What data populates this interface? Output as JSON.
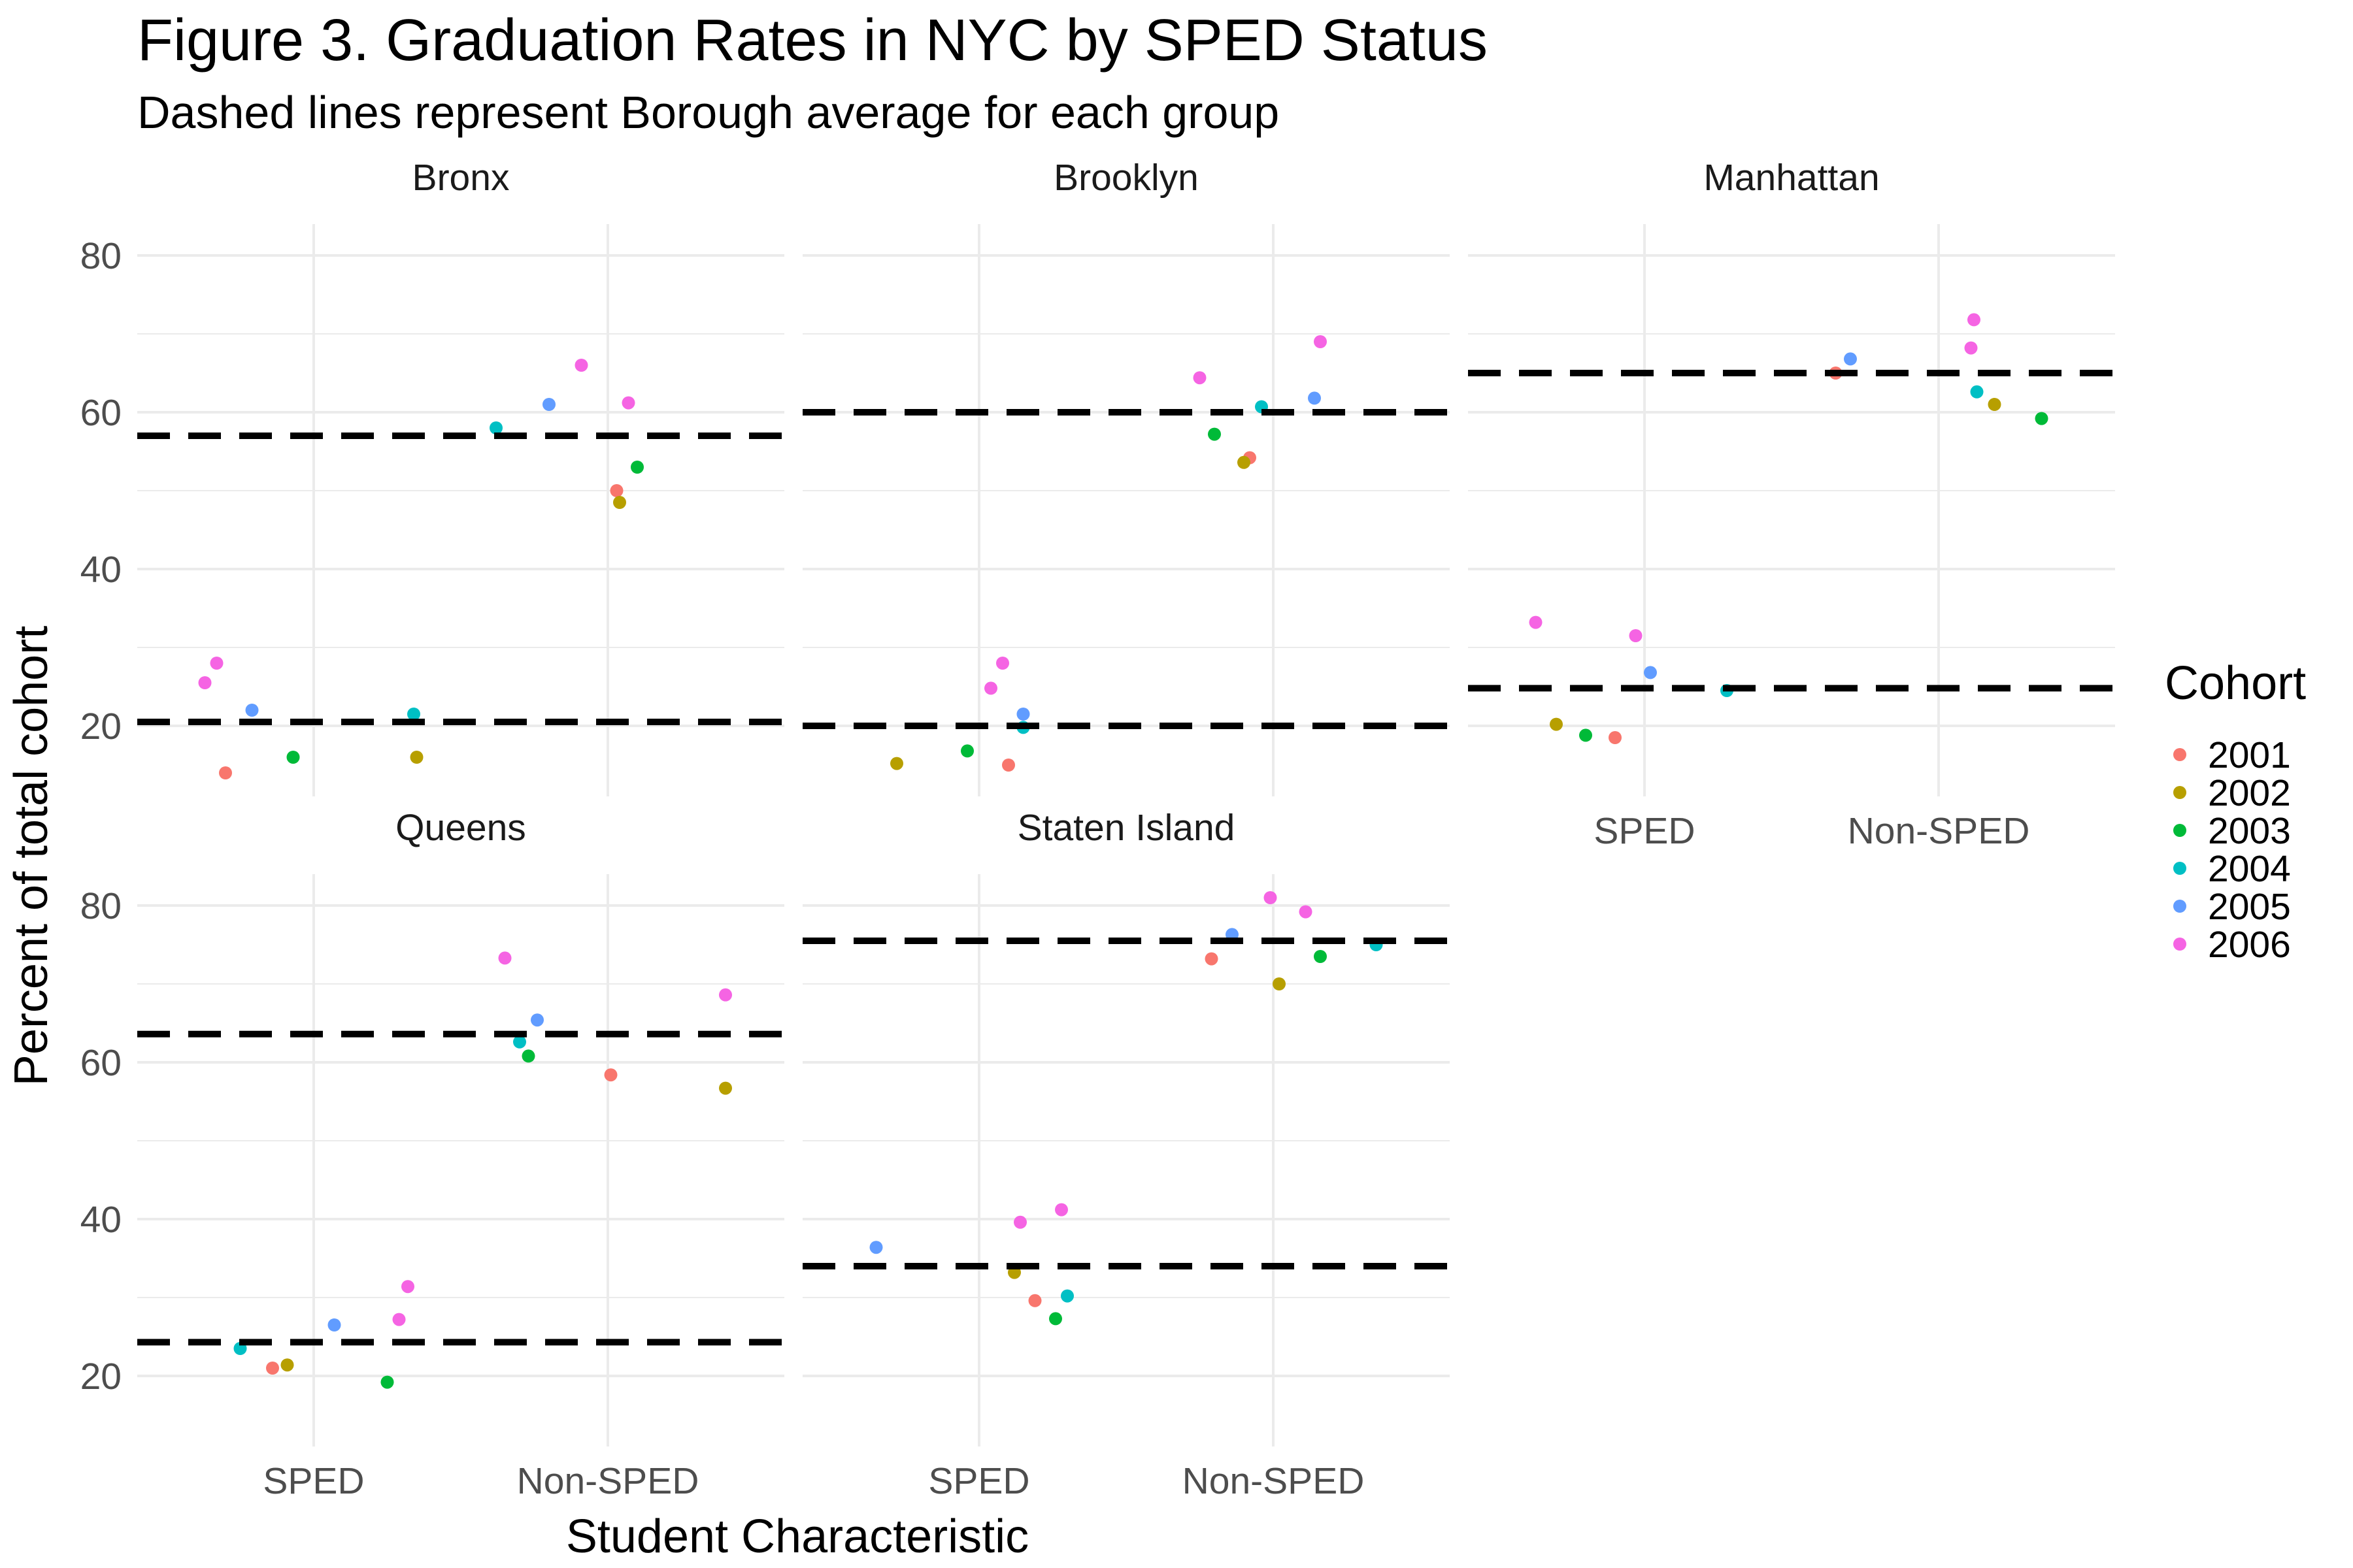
{
  "chart_data": {
    "type": "scatter",
    "title": "Figure 3. Graduation Rates in NYC by SPED Status",
    "subtitle": "Dashed lines represent Borough average for each group",
    "xlabel": "Student Characteristic",
    "ylabel": "Percent of total cohort",
    "categories": [
      "SPED",
      "Non-SPED"
    ],
    "y_ticks": [
      "20",
      "40",
      "60",
      "80"
    ],
    "ylim": [
      11,
      84
    ],
    "grid": true,
    "legend": {
      "title": "Cohort",
      "position": "right",
      "entries": [
        {
          "label": "2001",
          "color": "#F8766D"
        },
        {
          "label": "2002",
          "color": "#B79F00"
        },
        {
          "label": "2003",
          "color": "#00BA38"
        },
        {
          "label": "2004",
          "color": "#00BFC4"
        },
        {
          "label": "2005",
          "color": "#619CFF"
        },
        {
          "label": "2006",
          "color": "#F564E3"
        }
      ]
    },
    "panels": [
      {
        "name": "Bronx",
        "averages": {
          "SPED": 20.5,
          "Non-SPED": 57
        },
        "points": [
          {
            "cohort": "2001",
            "group": "SPED",
            "x": 0.7,
            "y": 14
          },
          {
            "cohort": "2002",
            "group": "SPED",
            "x": 1.35,
            "y": 16
          },
          {
            "cohort": "2003",
            "group": "SPED",
            "x": 0.93,
            "y": 16
          },
          {
            "cohort": "2004",
            "group": "SPED",
            "x": 1.34,
            "y": 21.5
          },
          {
            "cohort": "2005",
            "group": "SPED",
            "x": 0.79,
            "y": 22
          },
          {
            "cohort": "2006",
            "group": "SPED",
            "x": 0.63,
            "y": 25.5
          },
          {
            "cohort": "2006",
            "group": "SPED",
            "x": 0.67,
            "y": 28
          },
          {
            "cohort": "2001",
            "group": "Non-SPED",
            "x": 2.03,
            "y": 50
          },
          {
            "cohort": "2002",
            "group": "Non-SPED",
            "x": 2.04,
            "y": 48.5
          },
          {
            "cohort": "2003",
            "group": "Non-SPED",
            "x": 2.1,
            "y": 53
          },
          {
            "cohort": "2004",
            "group": "Non-SPED",
            "x": 1.62,
            "y": 58
          },
          {
            "cohort": "2005",
            "group": "Non-SPED",
            "x": 1.8,
            "y": 61
          },
          {
            "cohort": "2006",
            "group": "Non-SPED",
            "x": 1.91,
            "y": 66
          },
          {
            "cohort": "2006",
            "group": "Non-SPED",
            "x": 2.07,
            "y": 61.2
          }
        ]
      },
      {
        "name": "Brooklyn",
        "averages": {
          "SPED": 20,
          "Non-SPED": 60
        },
        "points": [
          {
            "cohort": "2001",
            "group": "SPED",
            "x": 1.1,
            "y": 15
          },
          {
            "cohort": "2002",
            "group": "SPED",
            "x": 0.72,
            "y": 15.2
          },
          {
            "cohort": "2003",
            "group": "SPED",
            "x": 0.96,
            "y": 16.8
          },
          {
            "cohort": "2004",
            "group": "SPED",
            "x": 1.15,
            "y": 19.8
          },
          {
            "cohort": "2005",
            "group": "SPED",
            "x": 1.15,
            "y": 21.5
          },
          {
            "cohort": "2006",
            "group": "SPED",
            "x": 1.04,
            "y": 24.8
          },
          {
            "cohort": "2006",
            "group": "SPED",
            "x": 1.08,
            "y": 28
          },
          {
            "cohort": "2001",
            "group": "Non-SPED",
            "x": 1.92,
            "y": 54.2
          },
          {
            "cohort": "2002",
            "group": "Non-SPED",
            "x": 1.9,
            "y": 53.6
          },
          {
            "cohort": "2003",
            "group": "Non-SPED",
            "x": 1.8,
            "y": 57.2
          },
          {
            "cohort": "2004",
            "group": "Non-SPED",
            "x": 1.96,
            "y": 60.7
          },
          {
            "cohort": "2005",
            "group": "Non-SPED",
            "x": 2.14,
            "y": 61.8
          },
          {
            "cohort": "2006",
            "group": "Non-SPED",
            "x": 1.75,
            "y": 64.4
          },
          {
            "cohort": "2006",
            "group": "Non-SPED",
            "x": 2.16,
            "y": 69
          }
        ]
      },
      {
        "name": "Manhattan",
        "averages": {
          "SPED": 24.8,
          "Non-SPED": 65
        },
        "points": [
          {
            "cohort": "2001",
            "group": "SPED",
            "x": 0.9,
            "y": 18.5
          },
          {
            "cohort": "2002",
            "group": "SPED",
            "x": 0.7,
            "y": 20.2
          },
          {
            "cohort": "2003",
            "group": "SPED",
            "x": 0.8,
            "y": 18.8
          },
          {
            "cohort": "2004",
            "group": "SPED",
            "x": 1.28,
            "y": 24.5
          },
          {
            "cohort": "2005",
            "group": "SPED",
            "x": 1.02,
            "y": 26.8
          },
          {
            "cohort": "2006",
            "group": "SPED",
            "x": 0.63,
            "y": 33.2
          },
          {
            "cohort": "2006",
            "group": "SPED",
            "x": 0.97,
            "y": 31.5
          },
          {
            "cohort": "2001",
            "group": "Non-SPED",
            "x": 1.65,
            "y": 65
          },
          {
            "cohort": "2002",
            "group": "Non-SPED",
            "x": 2.19,
            "y": 61
          },
          {
            "cohort": "2003",
            "group": "Non-SPED",
            "x": 2.35,
            "y": 59.2
          },
          {
            "cohort": "2004",
            "group": "Non-SPED",
            "x": 2.13,
            "y": 62.6
          },
          {
            "cohort": "2005",
            "group": "Non-SPED",
            "x": 1.7,
            "y": 66.8
          },
          {
            "cohort": "2006",
            "group": "Non-SPED",
            "x": 2.11,
            "y": 68.2
          },
          {
            "cohort": "2006",
            "group": "Non-SPED",
            "x": 2.12,
            "y": 71.8
          }
        ]
      },
      {
        "name": "Queens",
        "averages": {
          "SPED": 24.3,
          "Non-SPED": 63.6
        },
        "points": [
          {
            "cohort": "2001",
            "group": "SPED",
            "x": 0.86,
            "y": 21
          },
          {
            "cohort": "2002",
            "group": "SPED",
            "x": 0.91,
            "y": 21.4
          },
          {
            "cohort": "2003",
            "group": "SPED",
            "x": 1.25,
            "y": 19.2
          },
          {
            "cohort": "2004",
            "group": "SPED",
            "x": 0.75,
            "y": 23.5
          },
          {
            "cohort": "2005",
            "group": "SPED",
            "x": 1.07,
            "y": 26.5
          },
          {
            "cohort": "2006",
            "group": "SPED",
            "x": 1.29,
            "y": 27.2
          },
          {
            "cohort": "2006",
            "group": "SPED",
            "x": 1.32,
            "y": 31.4
          },
          {
            "cohort": "2001",
            "group": "Non-SPED",
            "x": 2.01,
            "y": 58.4
          },
          {
            "cohort": "2002",
            "group": "Non-SPED",
            "x": 2.4,
            "y": 56.7
          },
          {
            "cohort": "2003",
            "group": "Non-SPED",
            "x": 1.73,
            "y": 60.8
          },
          {
            "cohort": "2004",
            "group": "Non-SPED",
            "x": 1.7,
            "y": 62.6
          },
          {
            "cohort": "2005",
            "group": "Non-SPED",
            "x": 1.76,
            "y": 65.4
          },
          {
            "cohort": "2006",
            "group": "Non-SPED",
            "x": 1.65,
            "y": 73.3
          },
          {
            "cohort": "2006",
            "group": "Non-SPED",
            "x": 2.4,
            "y": 68.6
          }
        ]
      },
      {
        "name": "Staten Island",
        "averages": {
          "SPED": 34,
          "Non-SPED": 75.5
        },
        "points": [
          {
            "cohort": "2001",
            "group": "SPED",
            "x": 1.19,
            "y": 29.6
          },
          {
            "cohort": "2002",
            "group": "SPED",
            "x": 1.12,
            "y": 33.2
          },
          {
            "cohort": "2003",
            "group": "SPED",
            "x": 1.26,
            "y": 27.3
          },
          {
            "cohort": "2004",
            "group": "SPED",
            "x": 1.3,
            "y": 30.2
          },
          {
            "cohort": "2005",
            "group": "SPED",
            "x": 0.65,
            "y": 36.4
          },
          {
            "cohort": "2006",
            "group": "SPED",
            "x": 1.14,
            "y": 39.6
          },
          {
            "cohort": "2006",
            "group": "SPED",
            "x": 1.28,
            "y": 41.2
          },
          {
            "cohort": "2001",
            "group": "Non-SPED",
            "x": 1.79,
            "y": 73.2
          },
          {
            "cohort": "2002",
            "group": "Non-SPED",
            "x": 2.02,
            "y": 70
          },
          {
            "cohort": "2003",
            "group": "Non-SPED",
            "x": 2.16,
            "y": 73.5
          },
          {
            "cohort": "2004",
            "group": "Non-SPED",
            "x": 2.35,
            "y": 75
          },
          {
            "cohort": "2005",
            "group": "Non-SPED",
            "x": 1.86,
            "y": 76.3
          },
          {
            "cohort": "2006",
            "group": "Non-SPED",
            "x": 1.99,
            "y": 81
          },
          {
            "cohort": "2006",
            "group": "Non-SPED",
            "x": 2.11,
            "y": 79.2
          }
        ]
      }
    ]
  }
}
